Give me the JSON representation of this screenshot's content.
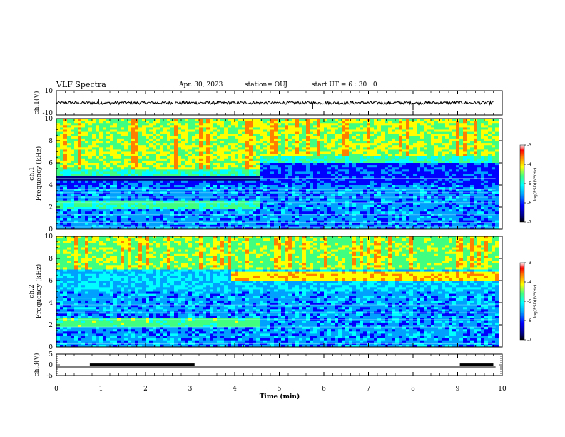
{
  "header": {
    "title": "VLF Spectra",
    "date": "Apr. 30, 2023",
    "station": "station= OUJ",
    "start_ut": "start  UT =   6 : 30 : 0"
  },
  "colors": {
    "spectrogram_scale": [
      "#000080",
      "#0000ff",
      "#00a0ff",
      "#00ffff",
      "#40ff80",
      "#ffff00",
      "#ff8000",
      "#ff0000",
      "#ffffff"
    ],
    "waveform": "#000000",
    "axes": "#000000"
  },
  "chart_data": [
    {
      "type": "line",
      "name": "ch1-waveform",
      "ylabel": "ch.1(V)",
      "ylim": [
        -10,
        10
      ],
      "yticks": [
        "10",
        "-10"
      ],
      "xlim": [
        0,
        10
      ],
      "baseline": 0
    },
    {
      "type": "heatmap",
      "name": "ch1-spectrogram",
      "ylabel_top": "ch.1",
      "ylabel": "Frequency (kHz)",
      "ylim": [
        0,
        10
      ],
      "yticks": [
        "0",
        "2",
        "4",
        "6",
        "8",
        "10"
      ],
      "xlim": [
        0,
        10
      ],
      "colorbar": {
        "label": "log(PSD)(V²/Hz)",
        "range": [
          -7,
          -3
        ],
        "ticks": [
          "-3",
          "-4",
          "-5",
          "-6",
          "-7"
        ]
      },
      "features": {
        "band_upper_edge_khz_before_4min": 5.0,
        "band_upper_edge_khz_after_4min": 6.2,
        "quiet_band_khz": [
          4.3,
          5.5
        ],
        "band_shift_time_min": 4.5
      }
    },
    {
      "type": "heatmap",
      "name": "ch2-spectrogram",
      "ylabel_top": "ch.2",
      "ylabel": "Frequency (kHz)",
      "ylim": [
        0,
        10
      ],
      "yticks": [
        "0",
        "2",
        "4",
        "6",
        "8",
        "10"
      ],
      "xlim": [
        0,
        10
      ],
      "colorbar": {
        "label": "log(PSD)(V²/Hz)",
        "range": [
          -7,
          -3
        ],
        "ticks": [
          "-3",
          "-4",
          "-5",
          "-6",
          "-7"
        ]
      },
      "features": {
        "strong_band_khz": [
          6.0,
          6.8
        ],
        "strong_band_start_min": 3.9
      }
    },
    {
      "type": "line",
      "name": "ch3-trace",
      "ylabel": "ch.3(V)",
      "ylim": [
        -5,
        5
      ],
      "yticks": [
        "5",
        "0",
        "-5"
      ],
      "xlim": [
        0,
        10
      ],
      "xlabel": "Time (min)",
      "xticks": [
        "0",
        "1",
        "2",
        "3",
        "4",
        "5",
        "6",
        "7",
        "8",
        "9",
        "10"
      ],
      "baseline": -1,
      "highs": [
        [
          0.75,
          3.1
        ],
        [
          9.05,
          9.8
        ]
      ],
      "high_value": 0.3
    }
  ]
}
